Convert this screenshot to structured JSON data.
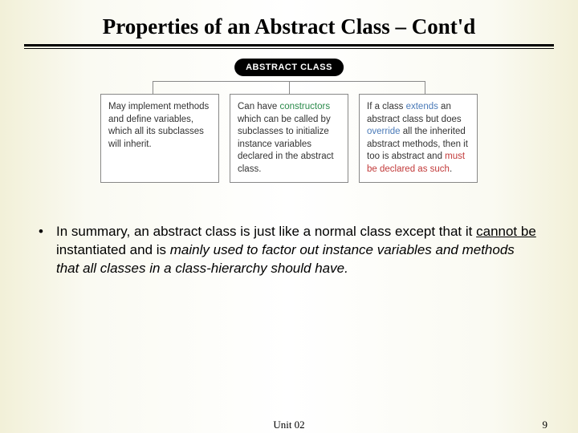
{
  "title": "Properties of an Abstract Class – Cont'd",
  "badge": "ABSTRACT CLASS",
  "box1": {
    "text": "May implement methods and define variables, which all its subclasses will inherit."
  },
  "box2": {
    "pre": "Can have ",
    "hl": "constructors",
    "post": " which can be called by subclasses to initialize instance variables declared in the abstract class."
  },
  "box3": {
    "p1a": "If a class ",
    "p1b": "extends",
    "p1c": " an abstract class but does ",
    "p1d": "override",
    "p1e": " all the inherited  abstract methods, then it too is abstract and ",
    "p1f": "must be declared as such",
    "p1g": "."
  },
  "summary": {
    "s1": "In summary, an abstract class is just like a normal class except that it ",
    "s2": "cannot be",
    "s3": " instantiated and is ",
    "s4": "mainly used to factor out instance variables and methods that all classes in a class-hierarchy should have."
  },
  "footer": {
    "unit": "Unit 02",
    "page": "9"
  }
}
